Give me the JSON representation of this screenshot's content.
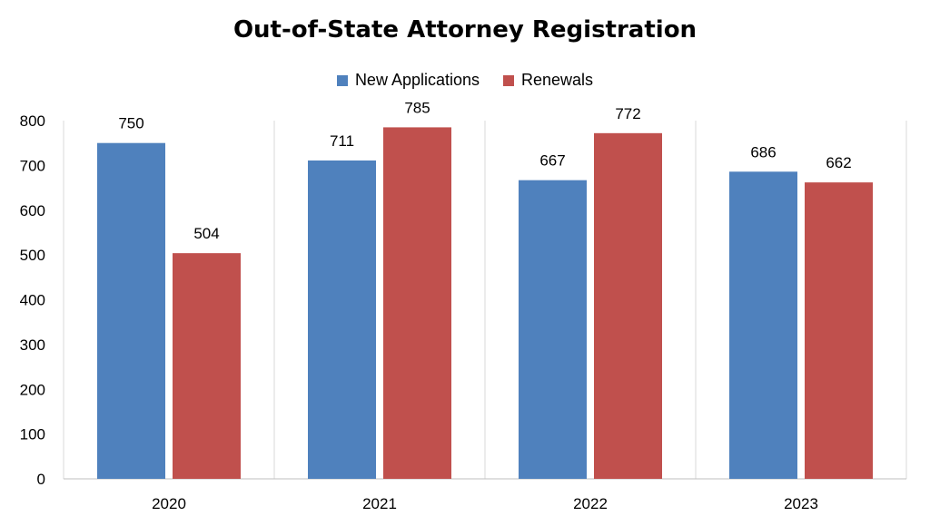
{
  "chart_data": {
    "type": "bar",
    "title": "Out-of-State Attorney Registration",
    "categories": [
      "2020",
      "2021",
      "2022",
      "2023"
    ],
    "series": [
      {
        "name": "New Applications",
        "values": [
          750,
          711,
          667,
          686
        ],
        "color": "#4f81bd"
      },
      {
        "name": "Renewals",
        "values": [
          504,
          785,
          772,
          662
        ],
        "color": "#c0504d"
      }
    ],
    "ylim": [
      0,
      800
    ],
    "yticks": [
      0,
      100,
      200,
      300,
      400,
      500,
      600,
      700,
      800
    ],
    "grid": "vertical category separators",
    "legend": "top-center"
  }
}
